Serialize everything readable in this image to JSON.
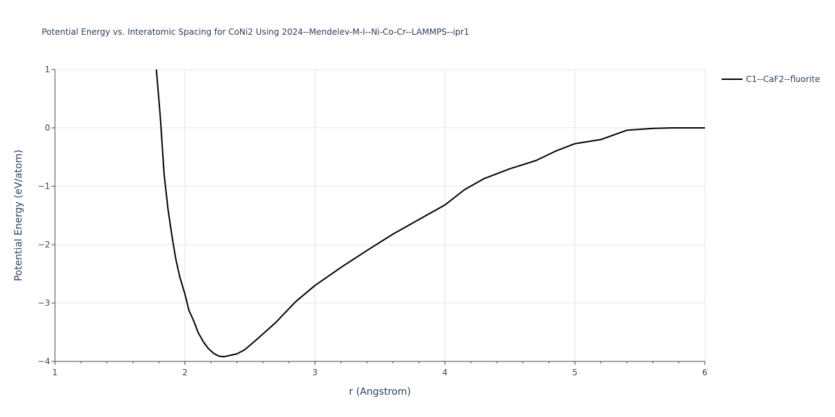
{
  "chart_data": {
    "type": "line",
    "title": "Potential Energy vs. Interatomic Spacing for CoNi2 Using 2024--Mendelev-M-I--Ni-Co-Cr--LAMMPS--ipr1",
    "xlabel": "r (Angstrom)",
    "ylabel": "Potential Energy (eV/atom)",
    "xlim": [
      1,
      6
    ],
    "ylim": [
      -4,
      1
    ],
    "xticks": [
      1,
      2,
      3,
      4,
      5,
      6
    ],
    "xtick_labels": [
      "1",
      "2",
      "3",
      "4",
      "5",
      "6"
    ],
    "yticks": [
      1,
      0,
      -1,
      -2,
      -3,
      -4
    ],
    "ytick_labels": [
      "1",
      "0",
      "−1",
      "−2",
      "−3",
      "−4"
    ],
    "grid": true,
    "legend_position": "top-right",
    "series": [
      {
        "name": "C1--CaF2--fluorite",
        "color": "#000000",
        "x": [
          1.78,
          1.81,
          1.84,
          1.87,
          1.9,
          1.93,
          1.96,
          2.0,
          2.03,
          2.07,
          2.1,
          2.14,
          2.18,
          2.22,
          2.26,
          2.3,
          2.34,
          2.4,
          2.46,
          2.55,
          2.7,
          2.85,
          3.0,
          3.2,
          3.4,
          3.6,
          3.8,
          4.0,
          4.15,
          4.3,
          4.5,
          4.7,
          4.85,
          5.0,
          5.2,
          5.4,
          5.6,
          5.75,
          5.9,
          6.0
        ],
        "y": [
          1.0,
          0.2,
          -0.8,
          -1.4,
          -1.85,
          -2.25,
          -2.55,
          -2.85,
          -3.12,
          -3.32,
          -3.5,
          -3.66,
          -3.78,
          -3.86,
          -3.91,
          -3.92,
          -3.9,
          -3.87,
          -3.8,
          -3.63,
          -3.33,
          -2.98,
          -2.7,
          -2.39,
          -2.1,
          -1.82,
          -1.57,
          -1.32,
          -1.06,
          -0.87,
          -0.7,
          -0.56,
          -0.4,
          -0.27,
          -0.2,
          -0.04,
          -0.01,
          0.0,
          0.0,
          0.0
        ]
      }
    ]
  }
}
